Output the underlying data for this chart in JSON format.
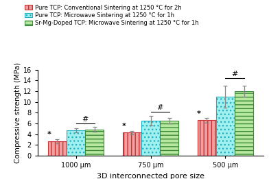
{
  "categories": [
    "1000 μm",
    "750 μm",
    "500 μm"
  ],
  "series": [
    {
      "label": "Pure TCP: Conventional Sintering at 1250 °C for 2h",
      "values": [
        2.7,
        4.3,
        6.6
      ],
      "errors": [
        0.4,
        0.35,
        0.4
      ],
      "facecolor": "#f0a0a0",
      "edgecolor": "#c83232",
      "hatch": "|||"
    },
    {
      "label": "Pure TCP: Microwave Sintering at 1250 °C for 1h",
      "values": [
        4.7,
        6.5,
        11.0
      ],
      "errors": [
        0.4,
        0.9,
        2.0
      ],
      "facecolor": "#a0f0f0",
      "edgecolor": "#20b0c0",
      "hatch": "..."
    },
    {
      "label": "Sr-Mg-Doped TCP: Microwave Sintering at 1250 °C for 1h",
      "values": [
        4.9,
        6.5,
        12.0
      ],
      "errors": [
        0.45,
        0.5,
        1.0
      ],
      "facecolor": "#b8e8a0",
      "edgecolor": "#3a8a3a",
      "hatch": "---"
    }
  ],
  "xlabel": "3D interconnected pore size",
  "ylabel": "Compressive strength (MPa)",
  "ylim": [
    0,
    16
  ],
  "yticks": [
    0,
    2,
    4,
    6,
    8,
    10,
    12,
    14,
    16
  ],
  "bar_width": 0.25,
  "background_color": "#ffffff"
}
